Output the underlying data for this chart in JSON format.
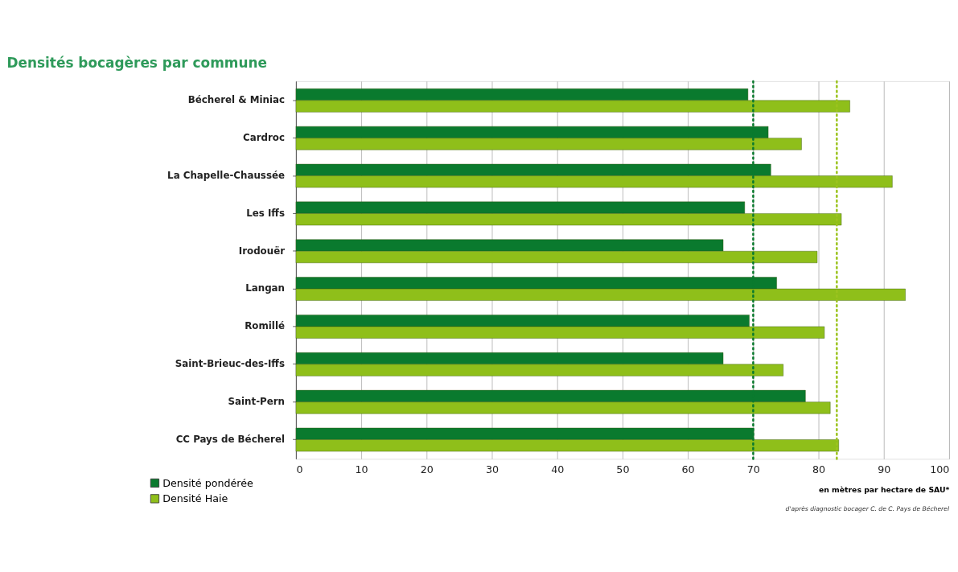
{
  "chart_data": {
    "type": "bar",
    "orientation": "horizontal",
    "title": "Densités bocagères par commune",
    "categories": [
      "Bécherel & Miniac",
      "Cardroc",
      "La Chapelle-Chaussée",
      "Les Iffs",
      "Irodouër",
      "Langan",
      "Romillé",
      "Saint-Brieuc-des-Iffs",
      "Saint-Pern",
      "CC Pays de Bécherel"
    ],
    "series": [
      {
        "name": "Densité pondérée",
        "color": "#0a7a2e",
        "values": [
          69.2,
          72.3,
          72.7,
          68.7,
          65.4,
          73.6,
          69.4,
          65.4,
          78.0,
          70.1
        ]
      },
      {
        "name": "Densité Haie",
        "color": "#8fbf1a",
        "values": [
          84.8,
          77.4,
          91.3,
          83.5,
          79.8,
          93.3,
          80.9,
          74.6,
          81.8,
          83.1
        ]
      }
    ],
    "xlabel": "en mètres par hectare de SAU*",
    "xlim": [
      0,
      100
    ],
    "xticks": [
      0,
      10,
      20,
      30,
      40,
      50,
      60,
      70,
      80,
      90,
      100
    ],
    "ref_lines": [
      {
        "axis": "x",
        "value": 70.0,
        "color": "#0a7a2e",
        "line_style": "dotted"
      },
      {
        "axis": "x",
        "value": 82.8,
        "color": "#9cc31f",
        "line_style": "dotted"
      }
    ],
    "grid": "x",
    "legend": "bottom left",
    "annotations": [
      "d'après diagnostic bocager C. de C. Pays de Bécherel"
    ]
  }
}
